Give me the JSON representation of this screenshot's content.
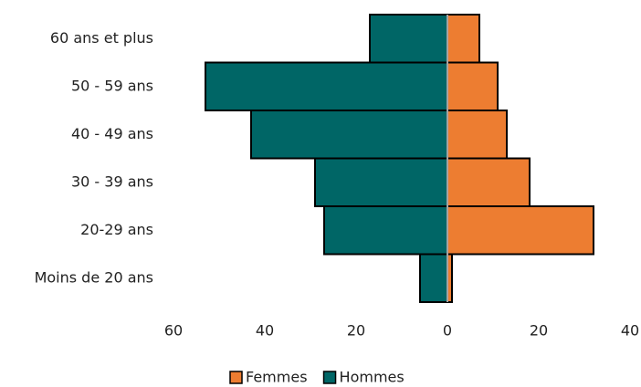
{
  "chart_data": {
    "type": "bar",
    "orientation": "horizontal",
    "stacked": false,
    "categories": [
      "60 ans et plus",
      "50 - 59 ans",
      "40 - 49 ans",
      "30 - 39 ans",
      "20-29 ans",
      "Moins de 20 ans"
    ],
    "series": [
      {
        "name": "Femmes",
        "color": "#ed7d31",
        "values": [
          7,
          11,
          13,
          18,
          32,
          1
        ]
      },
      {
        "name": "Hommes",
        "color": "#006666",
        "values": [
          -17,
          -53,
          -43,
          -29,
          -27,
          -6
        ]
      }
    ],
    "xlim": [
      -60,
      40
    ],
    "xticks": [
      {
        "value": -60,
        "label": "60"
      },
      {
        "value": -40,
        "label": "40"
      },
      {
        "value": -20,
        "label": "20"
      },
      0,
      20,
      40
    ],
    "legend": "bottom"
  }
}
